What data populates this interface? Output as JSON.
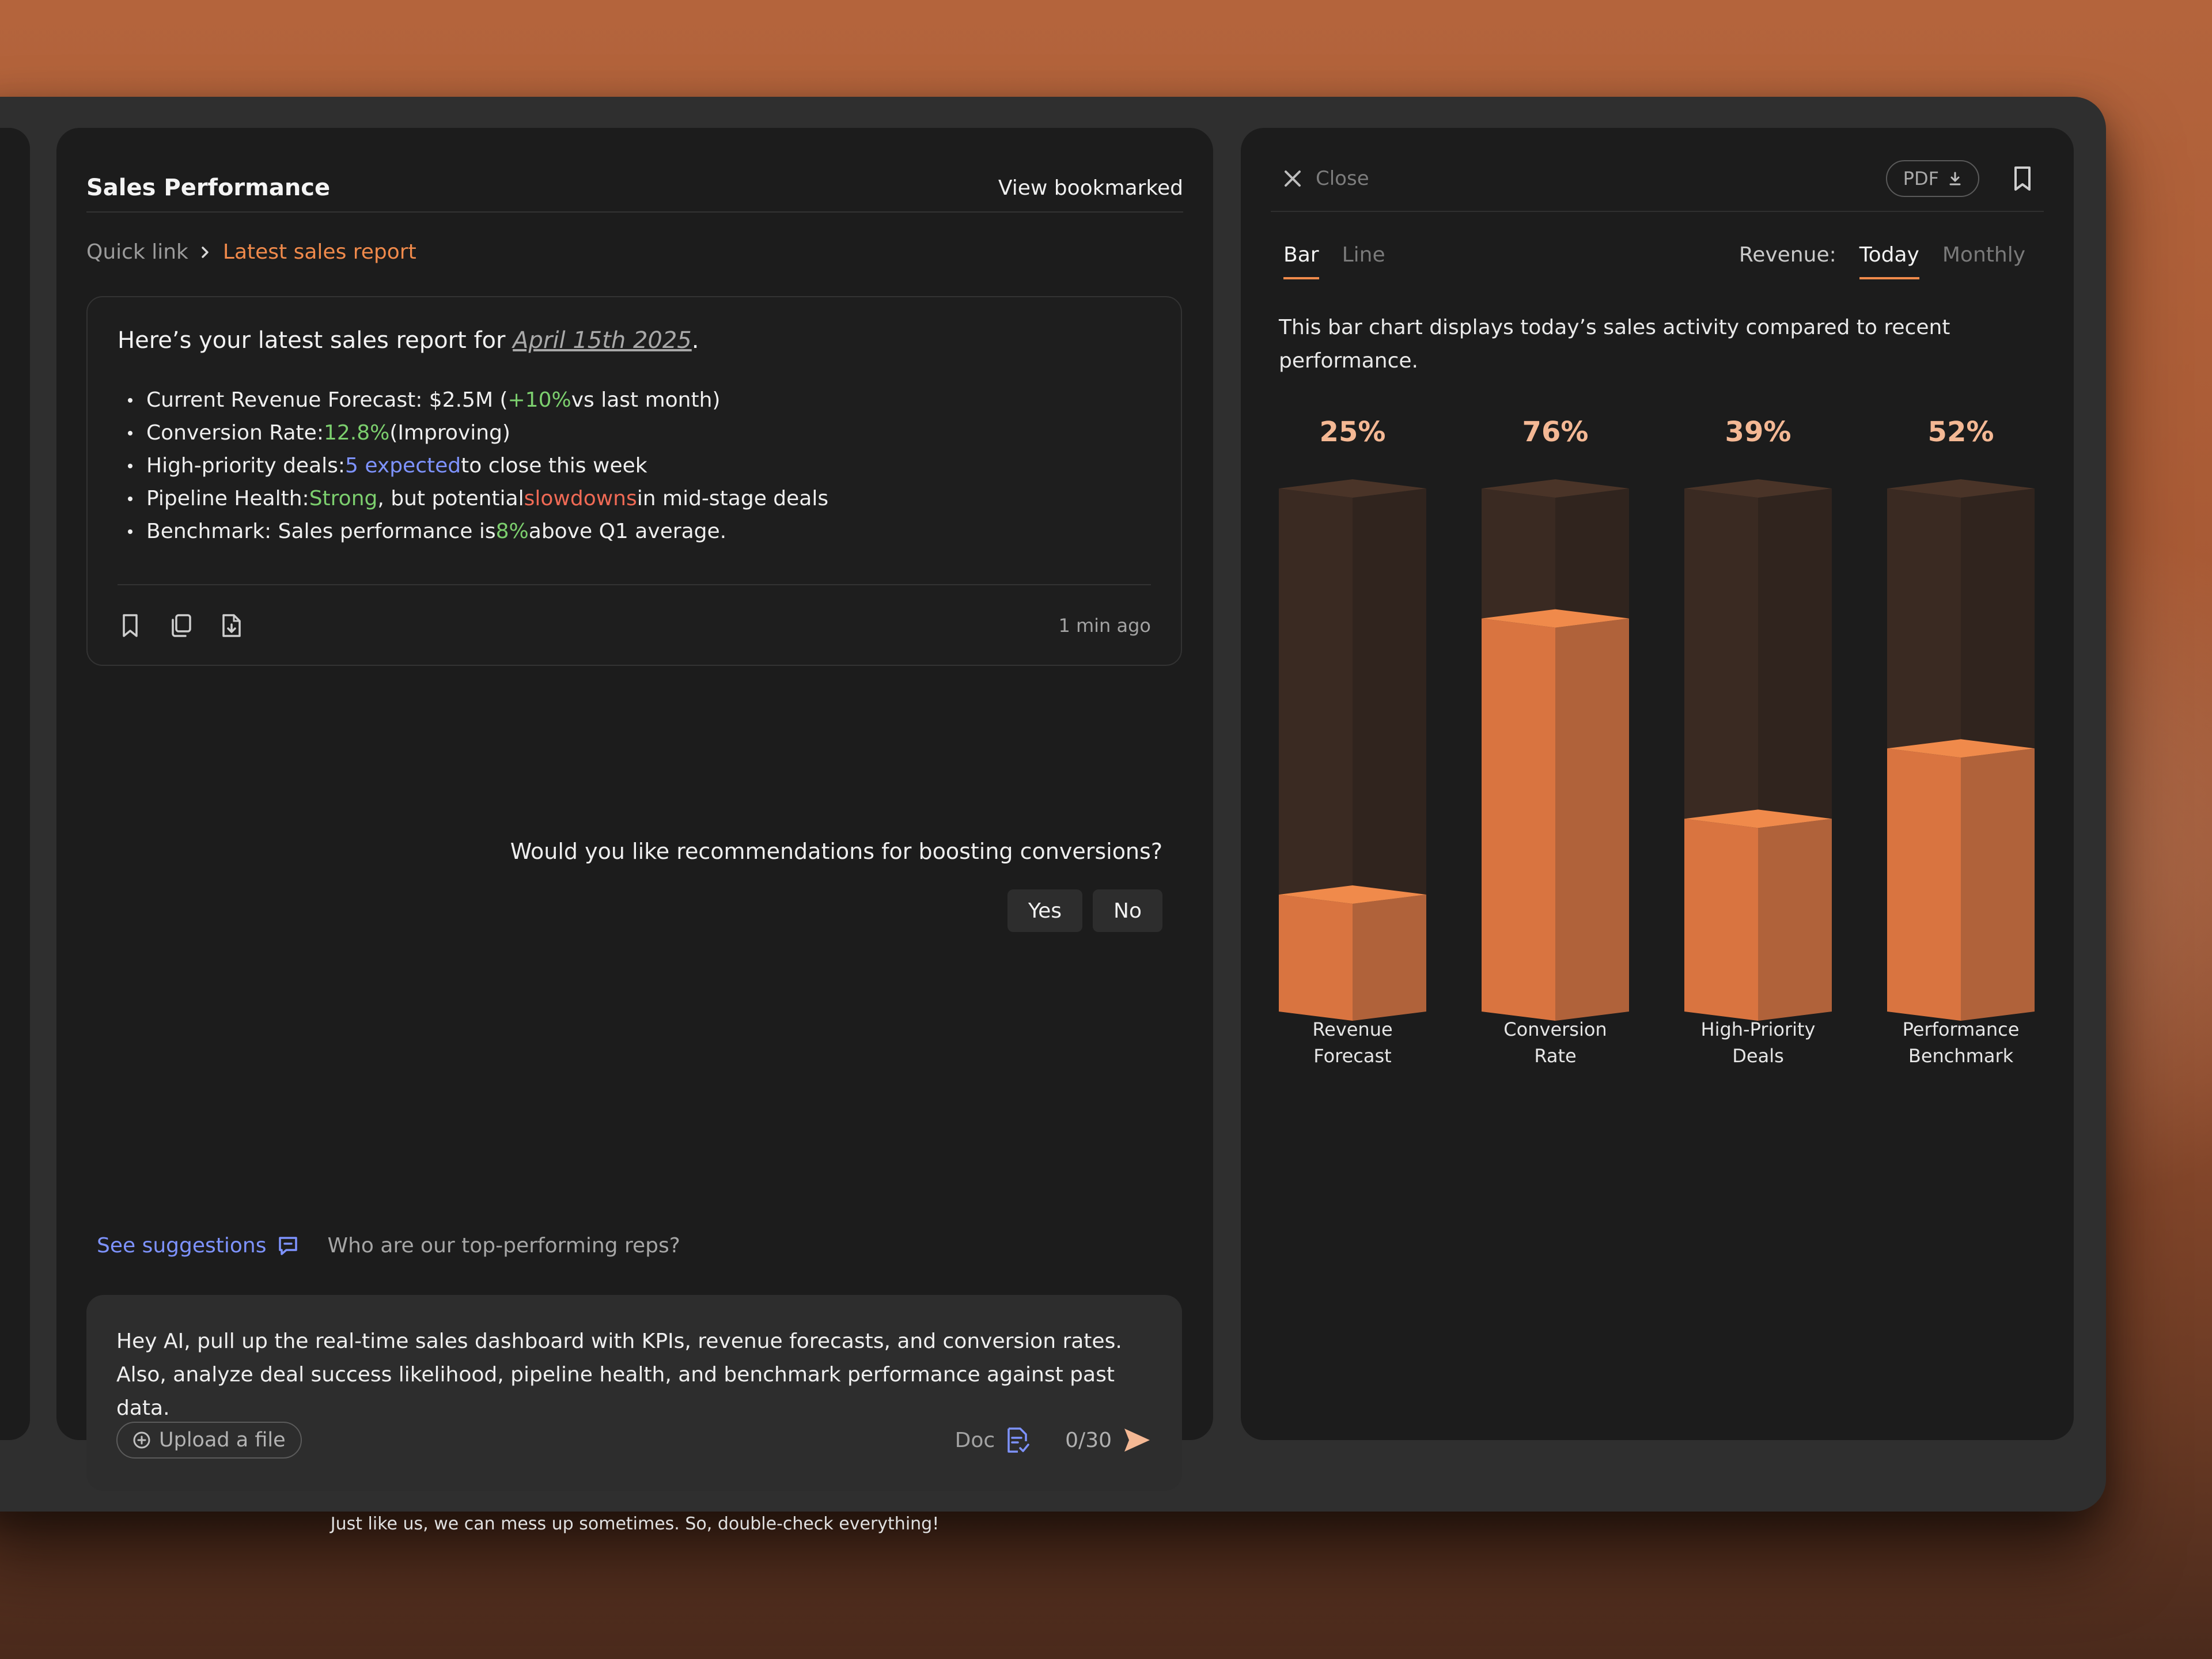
{
  "main": {
    "title": "Sales Performance",
    "view_bookmarked": "View bookmarked",
    "breadcrumb": {
      "quick_link": "Quick link",
      "current": "Latest sales report"
    },
    "report": {
      "intro": "Here’s your latest sales report for ",
      "date": "April 15th 2025",
      "intro_end": ".",
      "bullets": [
        {
          "parts": [
            "Current Revenue Forecast: $2.5M (",
            "+10%",
            " vs last month)"
          ]
        },
        {
          "parts": [
            "Conversion Rate: ",
            "12.8%",
            " (Improving)"
          ]
        },
        {
          "parts": [
            "High-priority deals: ",
            "5 expected",
            " to close this week"
          ]
        },
        {
          "parts": [
            "Pipeline Health: ",
            "Strong",
            ", but potential ",
            "slowdowns",
            " in mid-stage deals"
          ]
        },
        {
          "parts": [
            "Benchmark: Sales performance is ",
            "8%",
            " above Q1 average."
          ]
        }
      ],
      "time_ago": "1 min ago"
    },
    "question": "Would you like recommendations for boosting conversions?",
    "yes_label": "Yes",
    "no_label": "No",
    "see_suggestions": "See suggestions",
    "suggestion_text": "Who are our top-performing reps?",
    "composer_text": "Hey AI, pull up the real-time sales dashboard with KPIs, revenue forecasts, and conversion rates. Also, analyze deal success likelihood, pipeline health, and benchmark performance against past data.",
    "upload_label": "Upload a file",
    "doc_label": "Doc",
    "count": "0/30",
    "disclaimer": "Just like us, we can mess up sometimes. So, double-check everything!"
  },
  "right": {
    "close_label": "Close",
    "pdf_label": "PDF",
    "tabs": [
      "Bar",
      "Line"
    ],
    "revenue_label": "Revenue:",
    "rev_tabs": [
      "Today",
      "Monthly"
    ],
    "description": "This bar chart displays today’s sales activity compared to recent performance."
  },
  "chart_data": {
    "type": "bar",
    "categories": [
      "Revenue\nForecast",
      "Conversion\nRate",
      "High-Priority\nDeals",
      "Performance\nBenchmark"
    ],
    "values": [
      25,
      76,
      39,
      52
    ],
    "value_labels": [
      "25%",
      "76%",
      "39%",
      "52%"
    ],
    "ylim": [
      0,
      100
    ],
    "grid": false
  },
  "colors": {
    "accent": "#f08a4b",
    "bar_front": "#d97440",
    "bar_side": "#b0623a",
    "bar_top": "#f08a4b",
    "bar_track_front": "#3a2a22",
    "bar_track_side": "#30241e",
    "bar_track_top": "#4a3428",
    "positive": "#7ccf6e",
    "info": "#7e93ff",
    "negative": "#f06a55"
  }
}
